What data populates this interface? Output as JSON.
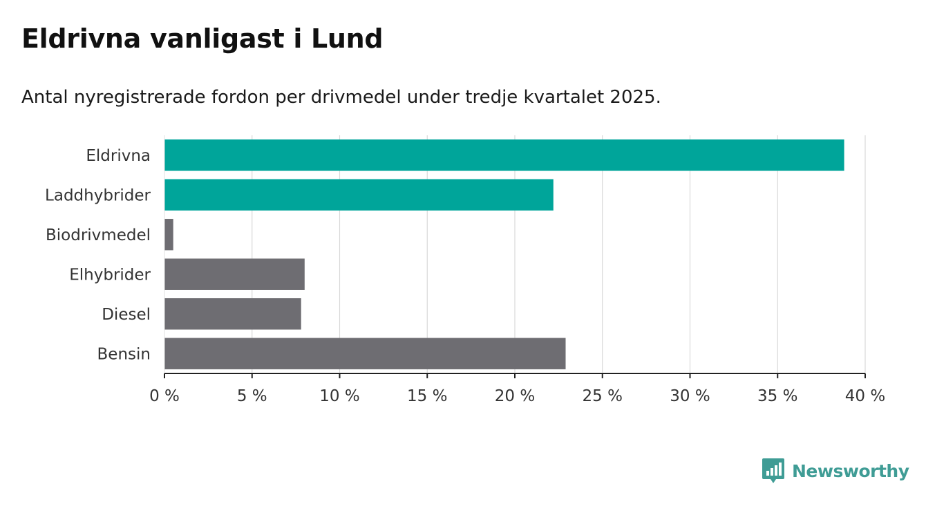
{
  "header": {
    "title": "Eldrivna vanligast i Lund",
    "subtitle": "Antal nyregistrerade fordon per drivmedel under tredje kvartalet 2025."
  },
  "chart_data": {
    "type": "bar",
    "orientation": "horizontal",
    "categories": [
      "Eldrivna",
      "Laddhybrider",
      "Biodrivmedel",
      "Elhybrider",
      "Diesel",
      "Bensin"
    ],
    "values": [
      38.8,
      22.2,
      0.5,
      8.0,
      7.8,
      22.9
    ],
    "colors": [
      "#00a59a",
      "#00a59a",
      "#6e6d72",
      "#6e6d72",
      "#6e6d72",
      "#6e6d72"
    ],
    "x_ticks": [
      0,
      5,
      10,
      15,
      20,
      25,
      30,
      35,
      40
    ],
    "x_tick_labels": [
      "0 %",
      "5 %",
      "10 %",
      "15 %",
      "20 %",
      "25 %",
      "30 %",
      "35 %",
      "40 %"
    ],
    "xlim": [
      0,
      40
    ],
    "xlabel": "",
    "ylabel": "",
    "grid": true
  },
  "branding": {
    "name": "Newsworthy",
    "icon": "newsworthy-logo-icon",
    "color": "#3f9c95"
  }
}
